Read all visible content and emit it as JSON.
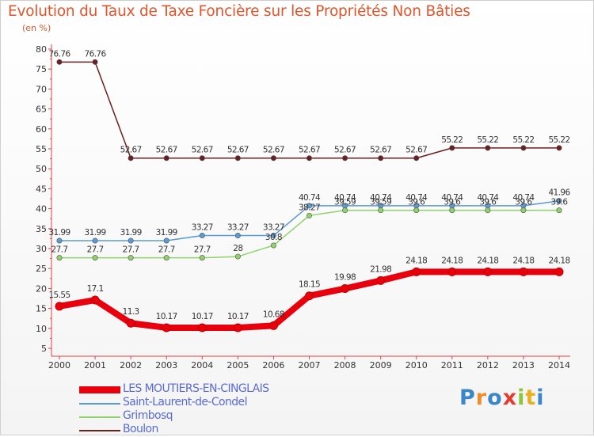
{
  "title": "Evolution du Taux de Taxe Foncière sur les Propriétés Non Bâties",
  "subtitle": "(en %)",
  "brand": {
    "letters": [
      "P",
      "r",
      "o",
      "x",
      "i",
      "t",
      "i"
    ],
    "colors": [
      "#3a86c8",
      "#f28c28",
      "#3a86c8",
      "#e53a2f",
      "#8cc63f",
      "#e8b020",
      "#3a86c8"
    ]
  },
  "chart_data": {
    "type": "line",
    "x": [
      "2000",
      "2001",
      "2002",
      "2003",
      "2004",
      "2005",
      "2006",
      "2007",
      "2008",
      "2009",
      "2010",
      "2011",
      "2012",
      "2013",
      "2014"
    ],
    "ylim": [
      5,
      80
    ],
    "yticks": [
      "5",
      "10",
      "15",
      "20",
      "25",
      "30",
      "35",
      "40",
      "45",
      "50",
      "55",
      "60",
      "65",
      "70",
      "75",
      "80"
    ],
    "grid": false,
    "legend_position": "bottom-left",
    "series": [
      {
        "name": "Boulon",
        "color": "#6b1f1f",
        "values": [
          76.76,
          76.76,
          52.67,
          52.67,
          52.67,
          52.67,
          52.67,
          52.67,
          52.67,
          52.67,
          52.67,
          55.22,
          55.22,
          55.22,
          55.22
        ],
        "labels": [
          "76.76",
          "76.76",
          "52.67",
          "52.67",
          "52.67",
          "52.67",
          "52.67",
          "52.67",
          "52.67",
          "52.67",
          "52.67",
          "55.22",
          "55.22",
          "55.22",
          "55.22"
        ]
      },
      {
        "name": "Saint-Laurent-de-Condel",
        "color": "#5b9bd5",
        "values": [
          31.99,
          31.99,
          31.99,
          31.99,
          33.27,
          33.27,
          33.27,
          40.74,
          40.74,
          40.74,
          40.74,
          40.74,
          40.74,
          40.74,
          41.96
        ],
        "labels": [
          "31.99",
          "31.99",
          "31.99",
          "31.99",
          "33.27",
          "33.27",
          "33.27",
          "40.74",
          "40.74",
          "40.74",
          "40.74",
          "40.74",
          "40.74",
          "40.74",
          "41.96"
        ]
      },
      {
        "name": "Grimbosq",
        "color": "#8fd16a",
        "values": [
          27.7,
          27.7,
          27.7,
          27.7,
          27.7,
          28,
          30.8,
          38.27,
          39.59,
          39.59,
          39.6,
          39.6,
          39.6,
          39.6,
          39.6
        ],
        "labels": [
          "27.7",
          "27.7",
          "27.7",
          "27.7",
          "27.7",
          "28",
          "30.8",
          "38.27",
          "39.59",
          "39.59",
          "39.6",
          "39.6",
          "39.6",
          "39.6",
          "39.6"
        ]
      },
      {
        "name": "LES MOUTIERS-EN-CINGLAIS",
        "color": "#e8000c",
        "values": [
          15.55,
          17.1,
          11.3,
          10.17,
          10.17,
          10.17,
          10.68,
          18.15,
          19.98,
          21.98,
          24.18,
          24.18,
          24.18,
          24.18,
          24.18
        ],
        "labels": [
          "15.55",
          "17.1",
          "11.3",
          "10.17",
          "10.17",
          "10.17",
          "10.68",
          "18.15",
          "19.98",
          "21.98",
          "24.18",
          "24.18",
          "24.18",
          "24.18",
          "24.18"
        ]
      }
    ],
    "legend_order": [
      "LES MOUTIERS-EN-CINGLAIS",
      "Saint-Laurent-de-Condel",
      "Grimbosq",
      "Boulon"
    ]
  }
}
